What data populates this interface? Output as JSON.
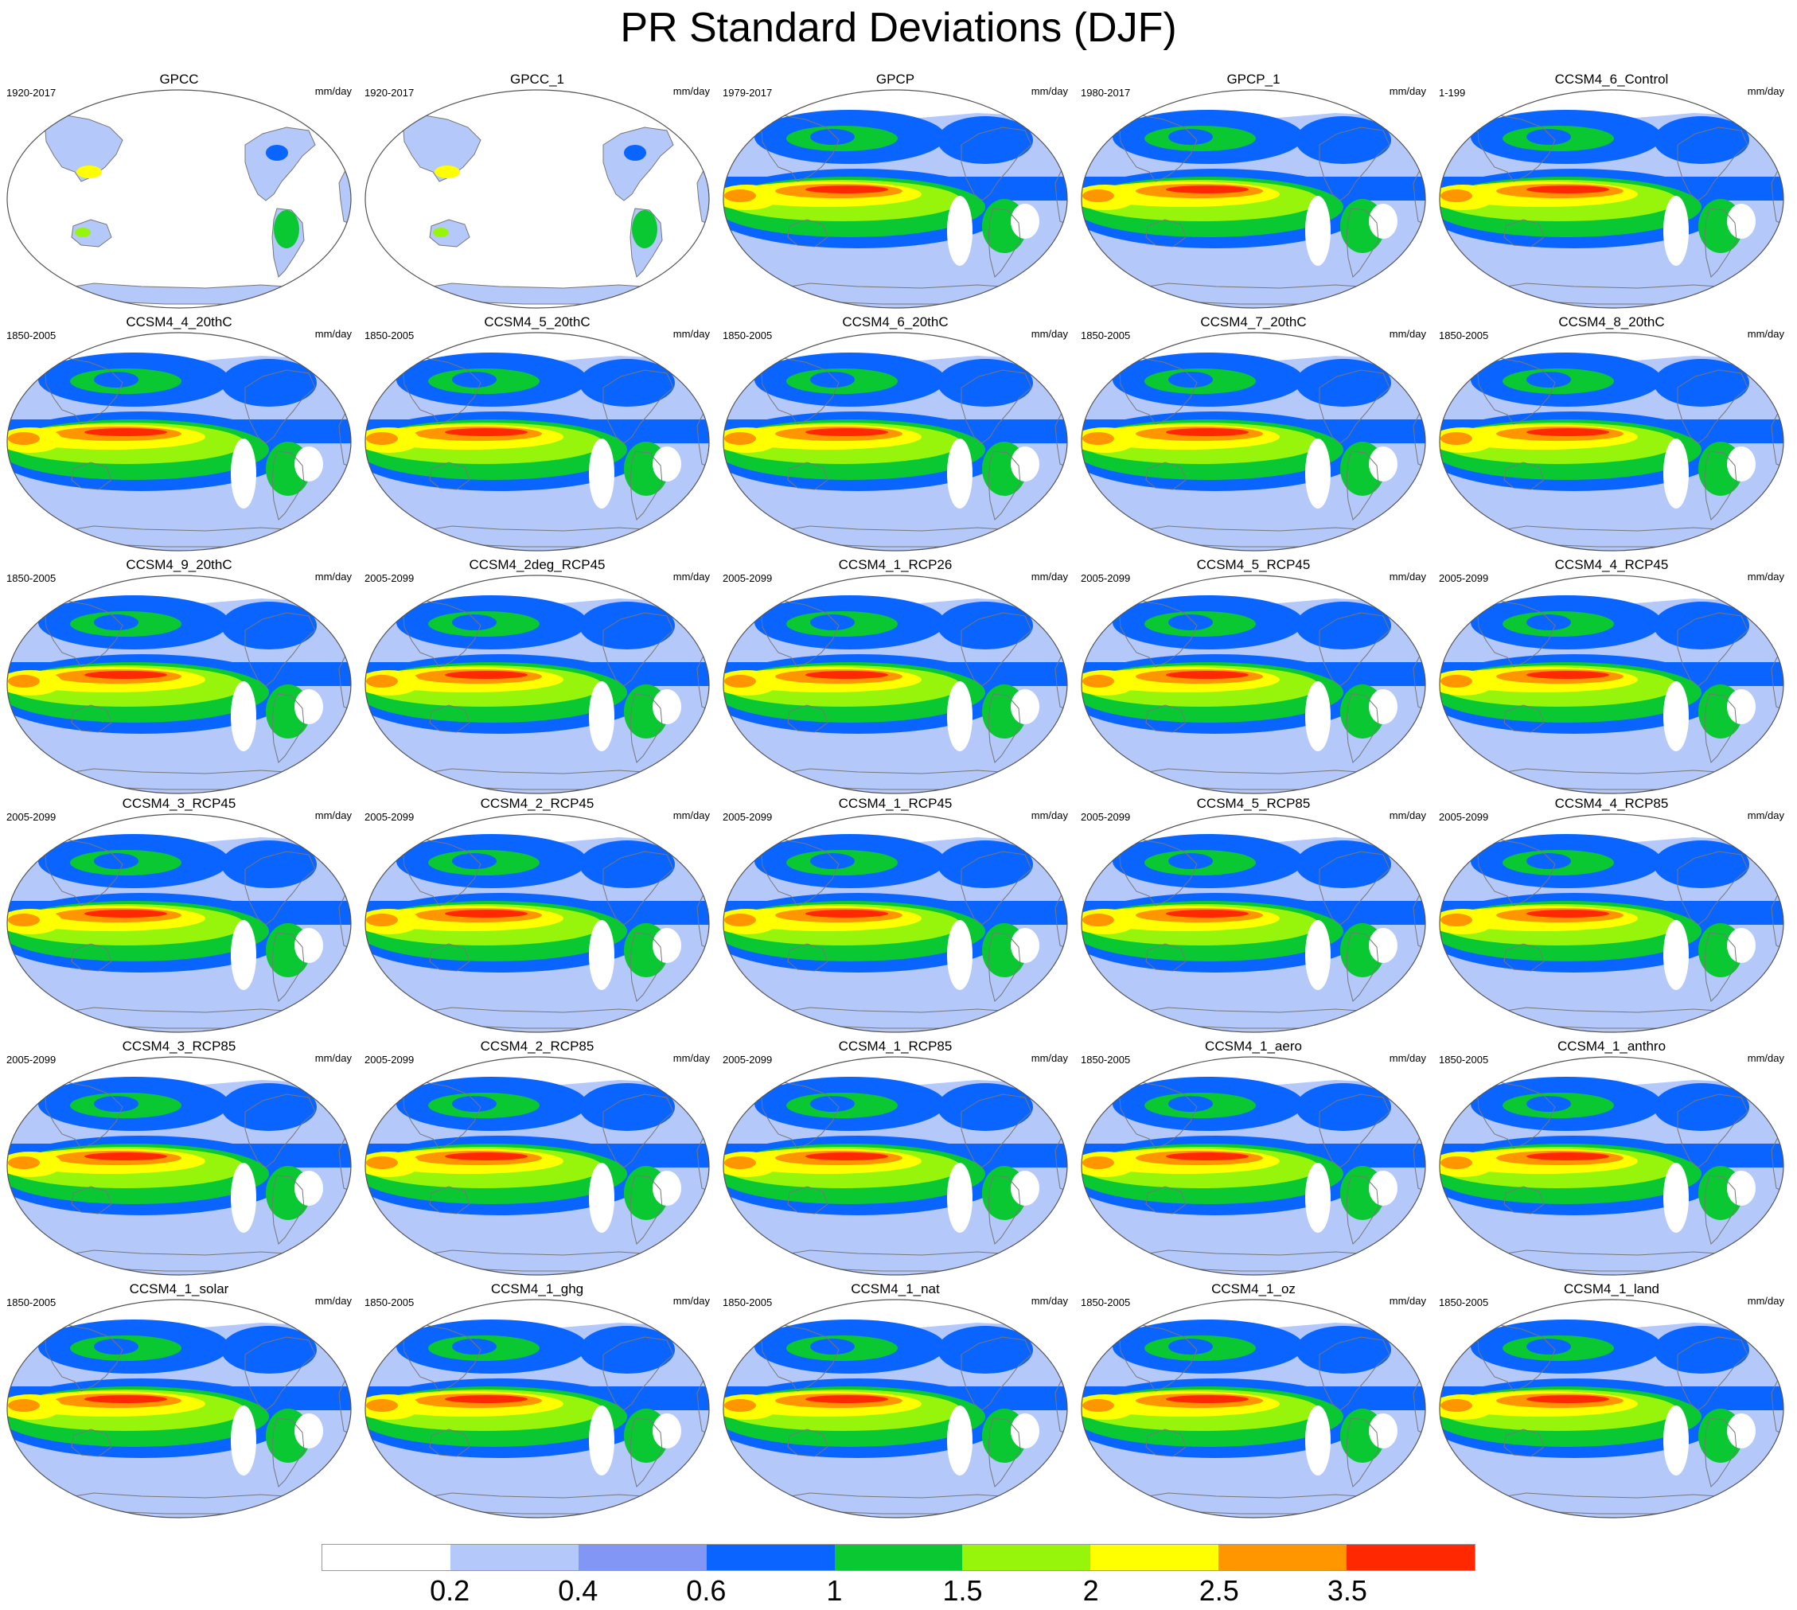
{
  "title": "PR Standard Deviations (DJF)",
  "units": "mm/day",
  "panels": [
    {
      "name": "GPCC",
      "years": "1920-2017"
    },
    {
      "name": "GPCC_1",
      "years": "1920-2017"
    },
    {
      "name": "GPCP",
      "years": "1979-2017"
    },
    {
      "name": "GPCP_1",
      "years": "1980-2017"
    },
    {
      "name": "CCSM4_6_Control",
      "years": "1-199"
    },
    {
      "name": "CCSM4_4_20thC",
      "years": "1850-2005"
    },
    {
      "name": "CCSM4_5_20thC",
      "years": "1850-2005"
    },
    {
      "name": "CCSM4_6_20thC",
      "years": "1850-2005"
    },
    {
      "name": "CCSM4_7_20thC",
      "years": "1850-2005"
    },
    {
      "name": "CCSM4_8_20thC",
      "years": "1850-2005"
    },
    {
      "name": "CCSM4_9_20thC",
      "years": "1850-2005"
    },
    {
      "name": "CCSM4_2deg_RCP45",
      "years": "2005-2099"
    },
    {
      "name": "CCSM4_1_RCP26",
      "years": "2005-2099"
    },
    {
      "name": "CCSM4_5_RCP45",
      "years": "2005-2099"
    },
    {
      "name": "CCSM4_4_RCP45",
      "years": "2005-2099"
    },
    {
      "name": "CCSM4_3_RCP45",
      "years": "2005-2099"
    },
    {
      "name": "CCSM4_2_RCP45",
      "years": "2005-2099"
    },
    {
      "name": "CCSM4_1_RCP45",
      "years": "2005-2099"
    },
    {
      "name": "CCSM4_5_RCP85",
      "years": "2005-2099"
    },
    {
      "name": "CCSM4_4_RCP85",
      "years": "2005-2099"
    },
    {
      "name": "CCSM4_3_RCP85",
      "years": "2005-2099"
    },
    {
      "name": "CCSM4_2_RCP85",
      "years": "2005-2099"
    },
    {
      "name": "CCSM4_1_RCP85",
      "years": "2005-2099"
    },
    {
      "name": "CCSM4_1_aero",
      "years": "1850-2005"
    },
    {
      "name": "CCSM4_1_anthro",
      "years": "1850-2005"
    },
    {
      "name": "CCSM4_1_solar",
      "years": "1850-2005"
    },
    {
      "name": "CCSM4_1_ghg",
      "years": "1850-2005"
    },
    {
      "name": "CCSM4_1_nat",
      "years": "1850-2005"
    },
    {
      "name": "CCSM4_1_oz",
      "years": "1850-2005"
    },
    {
      "name": "CCSM4_1_land",
      "years": "1850-2005"
    }
  ],
  "colorbar": {
    "colors": [
      "#ffffff",
      "#b4c8fa",
      "#8296f5",
      "#0a64ff",
      "#0ac832",
      "#96f50a",
      "#ffff00",
      "#ff9600",
      "#ff2800"
    ],
    "labels": [
      "0.2",
      "0.4",
      "0.6",
      "1",
      "1.5",
      "2",
      "2.5",
      "3.5"
    ]
  }
}
